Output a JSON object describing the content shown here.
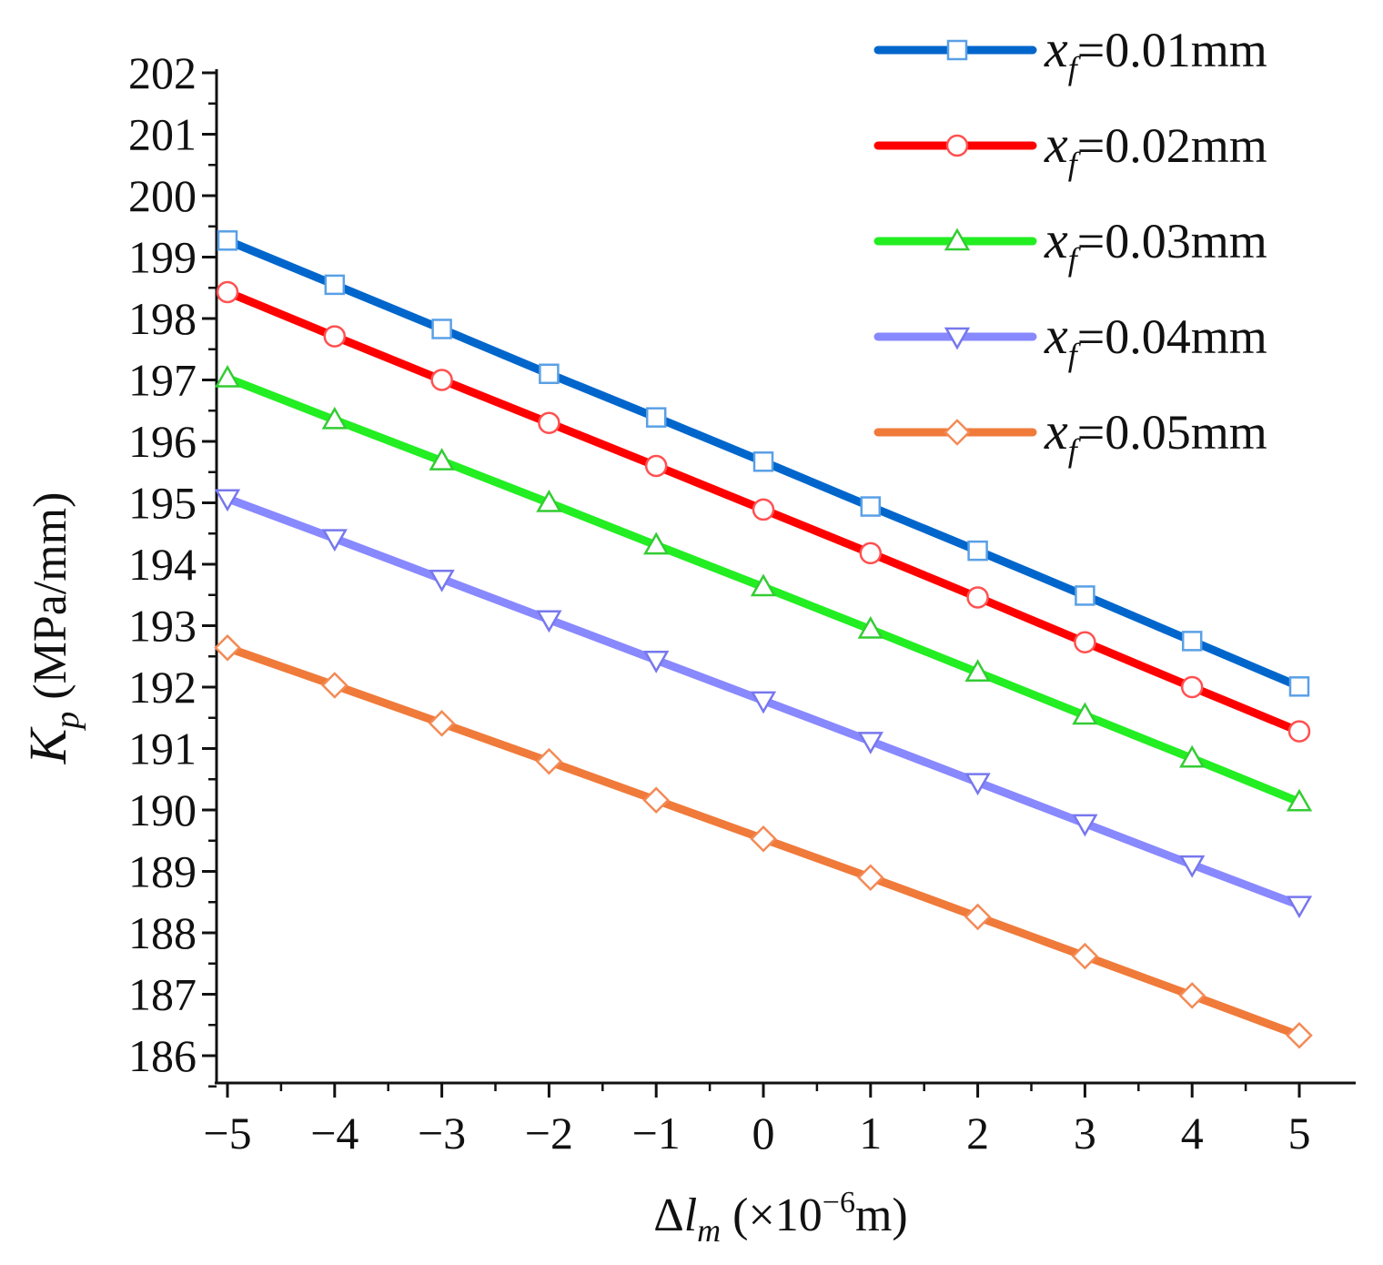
{
  "chart_data": {
    "type": "line",
    "title": "",
    "xlabel": {
      "prefix": "Δ",
      "symbol": "l",
      "subscript": "m",
      "unit_open": " (×10",
      "unit_exp": "−6",
      "unit_close": "m)"
    },
    "ylabel": {
      "symbol": "K",
      "subscript": "p",
      "unit": " (MPa/mm)"
    },
    "x": [
      -5,
      -4,
      -3,
      -2,
      -1,
      0,
      1,
      2,
      3,
      4,
      5
    ],
    "x_tick_labels": [
      "−5",
      "−4",
      "−3",
      "−2",
      "−1",
      "0",
      "1",
      "2",
      "3",
      "4",
      "5"
    ],
    "xlim": [
      -5.1,
      5.5
    ],
    "ylim": [
      185.5,
      202
    ],
    "y_ticks": [
      186,
      187,
      188,
      189,
      190,
      191,
      192,
      193,
      194,
      195,
      196,
      197,
      198,
      199,
      200,
      201,
      202
    ],
    "y_tick_labels": [
      "186",
      "187",
      "188",
      "189",
      "190",
      "191",
      "192",
      "193",
      "194",
      "195",
      "196",
      "197",
      "198",
      "199",
      "200",
      "201",
      "202"
    ],
    "grid": false,
    "legend_position": "top-right",
    "series": [
      {
        "name": "x_f=0.01mm",
        "legend_symbol": "x",
        "legend_sub": "f",
        "legend_value": "=0.01mm",
        "color": "#0066cc",
        "marker_color": "#5aa0e6",
        "marker": "square",
        "values": [
          199.27,
          198.55,
          197.83,
          197.1,
          196.39,
          195.67,
          194.94,
          194.22,
          193.49,
          192.75,
          192.01
        ]
      },
      {
        "name": "x_f=0.02mm",
        "legend_symbol": "x",
        "legend_sub": "f",
        "legend_value": "=0.02mm",
        "color": "#ff0000",
        "marker_color": "#ff5050",
        "marker": "circle",
        "values": [
          198.43,
          197.71,
          197.0,
          196.3,
          195.6,
          194.89,
          194.18,
          193.46,
          192.73,
          192.0,
          191.28
        ]
      },
      {
        "name": "x_f=0.03mm",
        "legend_symbol": "x",
        "legend_sub": "f",
        "legend_value": "=0.03mm",
        "color": "#22ee22",
        "marker_color": "#33cc33",
        "marker": "triangle-up",
        "values": [
          197.03,
          196.35,
          195.68,
          195.0,
          194.31,
          193.63,
          192.94,
          192.24,
          191.54,
          190.84,
          190.13
        ]
      },
      {
        "name": "x_f=0.04mm",
        "legend_symbol": "x",
        "legend_sub": "f",
        "legend_value": "=0.04mm",
        "color": "#8888ff",
        "marker_color": "#7777ee",
        "marker": "triangle-down",
        "values": [
          195.07,
          194.42,
          193.76,
          193.1,
          192.44,
          191.78,
          191.12,
          190.45,
          189.78,
          189.11,
          188.45
        ]
      },
      {
        "name": "x_f=0.05mm",
        "legend_symbol": "x",
        "legend_sub": "f",
        "legend_value": "=0.05mm",
        "color": "#f07a3a",
        "marker_color": "#f38a55",
        "marker": "diamond",
        "values": [
          192.64,
          192.03,
          191.41,
          190.79,
          190.16,
          189.53,
          188.9,
          188.26,
          187.62,
          186.98,
          186.33
        ]
      }
    ]
  }
}
